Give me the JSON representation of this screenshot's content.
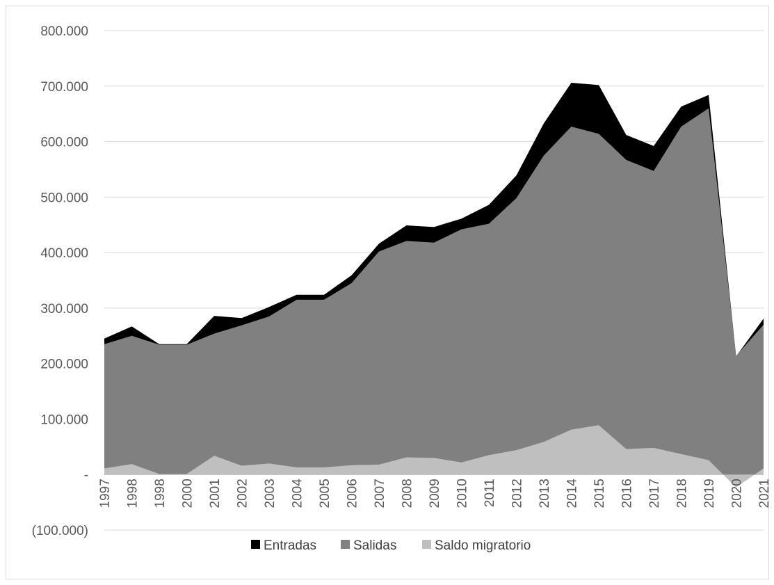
{
  "chart_data": {
    "type": "area",
    "stacked": false,
    "categories": [
      "1997",
      "1998",
      "1998",
      "2000",
      "2001",
      "2002",
      "2003",
      "2004",
      "2005",
      "2006",
      "2007",
      "2008",
      "2009",
      "2010",
      "2011",
      "2012",
      "2013",
      "2014",
      "2015",
      "2016",
      "2017",
      "2018",
      "2019",
      "2020",
      "2021"
    ],
    "series": [
      {
        "name": "Entradas",
        "color": "#000000",
        "values": [
          245000,
          267000,
          235000,
          235000,
          286000,
          282000,
          302000,
          324000,
          324000,
          359000,
          416000,
          449000,
          446000,
          461000,
          486000,
          539000,
          633000,
          706000,
          702000,
          612000,
          592000,
          663000,
          684000,
          213000,
          281000
        ]
      },
      {
        "name": "Salidas",
        "color": "#808080",
        "values": [
          235000,
          250000,
          234000,
          234000,
          254000,
          269000,
          285000,
          315000,
          315000,
          345000,
          402000,
          421000,
          418000,
          442000,
          452000,
          498000,
          575000,
          627000,
          614000,
          567000,
          547000,
          627000,
          660000,
          214000,
          270000
        ]
      },
      {
        "name": "Saldo migratorio",
        "color": "#bfbfbf",
        "values": [
          11000,
          19000,
          1000,
          1000,
          34000,
          16000,
          20000,
          13000,
          13000,
          17000,
          18000,
          31000,
          30000,
          22000,
          35000,
          44000,
          59000,
          81000,
          89000,
          46000,
          48000,
          37000,
          26000,
          -23000,
          11000
        ]
      }
    ],
    "y_tick_labels": [
      "(100.000)",
      "-",
      "100.000",
      "200.000",
      "300.000",
      "400.000",
      "500.000",
      "600.000",
      "700.000",
      "800.000"
    ],
    "ylim": [
      -100000,
      800000
    ],
    "grid": true,
    "legend_position": "bottom",
    "title": "",
    "xlabel": "",
    "ylabel": ""
  }
}
